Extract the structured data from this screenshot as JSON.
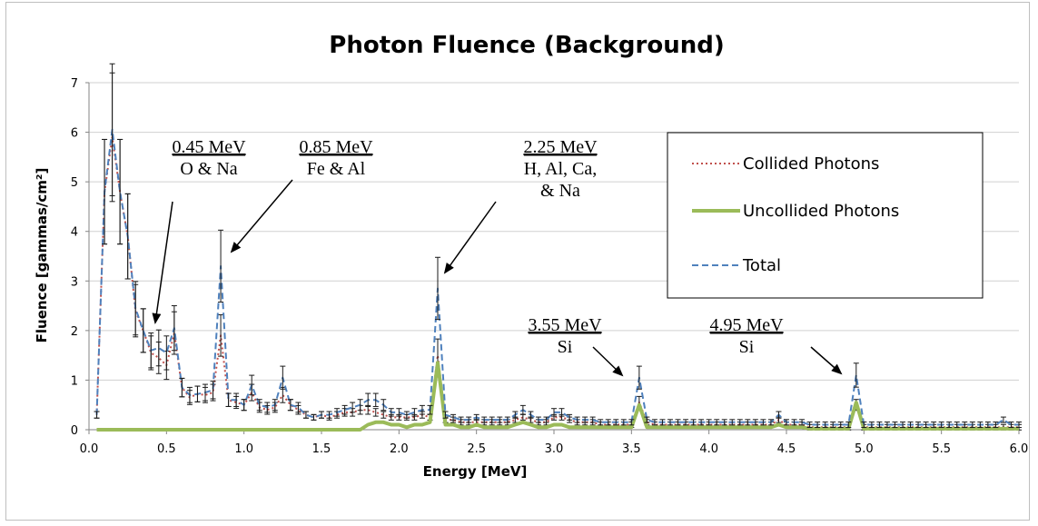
{
  "chart_data": {
    "type": "line",
    "title": "Photon Fluence (Background)",
    "xlabel": "Energy [MeV]",
    "ylabel": "Fluence [gammas/cm²]",
    "xlim": [
      0,
      6.0
    ],
    "ylim": [
      0,
      7
    ],
    "xticks": [
      "0.0",
      "0.5",
      "1.0",
      "1.5",
      "2.0",
      "2.5",
      "3.0",
      "3.5",
      "4.0",
      "4.5",
      "5.0",
      "5.5",
      "6.0"
    ],
    "yticks": [
      "0",
      "1",
      "2",
      "3",
      "4",
      "5",
      "6",
      "7"
    ],
    "grid": "horizontal",
    "legend_position": "top-right",
    "x": [
      0.05,
      0.1,
      0.15,
      0.2,
      0.25,
      0.3,
      0.35,
      0.4,
      0.45,
      0.5,
      0.55,
      0.6,
      0.65,
      0.7,
      0.75,
      0.8,
      0.85,
      0.9,
      0.95,
      1.0,
      1.05,
      1.1,
      1.15,
      1.2,
      1.25,
      1.3,
      1.35,
      1.4,
      1.45,
      1.5,
      1.55,
      1.6,
      1.65,
      1.7,
      1.75,
      1.8,
      1.85,
      1.9,
      1.95,
      2.0,
      2.05,
      2.1,
      2.15,
      2.2,
      2.25,
      2.3,
      2.35,
      2.4,
      2.45,
      2.5,
      2.55,
      2.6,
      2.65,
      2.7,
      2.75,
      2.8,
      2.85,
      2.9,
      2.95,
      3.0,
      3.05,
      3.1,
      3.15,
      3.2,
      3.25,
      3.3,
      3.35,
      3.4,
      3.45,
      3.5,
      3.55,
      3.6,
      3.65,
      3.7,
      3.75,
      3.8,
      3.85,
      3.9,
      3.95,
      4.0,
      4.05,
      4.1,
      4.15,
      4.2,
      4.25,
      4.3,
      4.35,
      4.4,
      4.45,
      4.5,
      4.55,
      4.6,
      4.65,
      4.7,
      4.75,
      4.8,
      4.85,
      4.9,
      4.95,
      5.0,
      5.05,
      5.1,
      5.15,
      5.2,
      5.25,
      5.3,
      5.35,
      5.4,
      5.45,
      5.5,
      5.55,
      5.6,
      5.65,
      5.7,
      5.75,
      5.8,
      5.85,
      5.9,
      5.95,
      6.0
    ],
    "series": [
      {
        "name": "Collided Photons",
        "color": "#c0504d",
        "style": "dotted",
        "values": [
          0.3,
          4.8,
          5.9,
          4.8,
          3.9,
          2.4,
          2.0,
          1.55,
          1.45,
          1.3,
          1.95,
          0.85,
          0.65,
          0.72,
          0.7,
          0.75,
          1.9,
          0.6,
          0.55,
          0.5,
          0.75,
          0.45,
          0.4,
          0.45,
          0.7,
          0.5,
          0.4,
          0.3,
          0.25,
          0.3,
          0.25,
          0.3,
          0.35,
          0.35,
          0.4,
          0.4,
          0.35,
          0.3,
          0.25,
          0.25,
          0.25,
          0.25,
          0.3,
          0.25,
          1.5,
          0.2,
          0.2,
          0.15,
          0.15,
          0.15,
          0.15,
          0.15,
          0.15,
          0.15,
          0.2,
          0.25,
          0.2,
          0.15,
          0.15,
          0.25,
          0.25,
          0.2,
          0.15,
          0.15,
          0.15,
          0.1,
          0.1,
          0.1,
          0.1,
          0.1,
          0.55,
          0.15,
          0.1,
          0.1,
          0.1,
          0.1,
          0.1,
          0.1,
          0.1,
          0.1,
          0.1,
          0.1,
          0.1,
          0.1,
          0.1,
          0.1,
          0.1,
          0.1,
          0.2,
          0.1,
          0.1,
          0.1,
          0.05,
          0.05,
          0.05,
          0.05,
          0.05,
          0.05,
          0.5,
          0.05,
          0.05,
          0.05,
          0.05,
          0.05,
          0.05,
          0.05,
          0.05,
          0.05,
          0.05,
          0.05,
          0.05,
          0.05,
          0.05,
          0.05,
          0.05,
          0.05,
          0.05,
          0.05,
          0.05,
          0.05
        ]
      },
      {
        "name": "Uncollided Photons",
        "color": "#9bbb59",
        "style": "solid",
        "values": [
          0,
          0,
          0,
          0,
          0,
          0,
          0,
          0,
          0,
          0,
          0,
          0,
          0,
          0,
          0,
          0,
          0,
          0,
          0,
          0,
          0,
          0,
          0,
          0,
          0,
          0,
          0,
          0,
          0,
          0,
          0,
          0,
          0,
          0,
          0,
          0.1,
          0.15,
          0.15,
          0.1,
          0.1,
          0.05,
          0.1,
          0.1,
          0.15,
          1.35,
          0.1,
          0.1,
          0.05,
          0.05,
          0.1,
          0.05,
          0.05,
          0.05,
          0.05,
          0.1,
          0.15,
          0.1,
          0.05,
          0.05,
          0.1,
          0.1,
          0.05,
          0.05,
          0.05,
          0.05,
          0.05,
          0.05,
          0.05,
          0.05,
          0.05,
          0.5,
          0.05,
          0.05,
          0.05,
          0.05,
          0.05,
          0.05,
          0.05,
          0.05,
          0.05,
          0.05,
          0.05,
          0.05,
          0.05,
          0.05,
          0.05,
          0.05,
          0.05,
          0.1,
          0.05,
          0.05,
          0.05,
          0.02,
          0.02,
          0.02,
          0.02,
          0.02,
          0.02,
          0.55,
          0.02,
          0.02,
          0.02,
          0.02,
          0.02,
          0.02,
          0.02,
          0.02,
          0.02,
          0.02,
          0.02,
          0.02,
          0.02,
          0.02,
          0.02,
          0.02,
          0.02,
          0.02,
          0.02,
          0.02,
          0.02
        ]
      },
      {
        "name": "Total",
        "color": "#4f81bd",
        "style": "dashed",
        "values": [
          0.3,
          4.8,
          6.05,
          4.8,
          3.9,
          2.45,
          2.0,
          1.6,
          1.65,
          1.55,
          2.05,
          0.85,
          0.7,
          0.72,
          0.75,
          0.8,
          3.3,
          0.6,
          0.6,
          0.5,
          0.9,
          0.5,
          0.45,
          0.5,
          1.05,
          0.5,
          0.45,
          0.3,
          0.25,
          0.3,
          0.3,
          0.35,
          0.4,
          0.45,
          0.5,
          0.6,
          0.6,
          0.5,
          0.35,
          0.35,
          0.3,
          0.35,
          0.4,
          0.4,
          2.85,
          0.3,
          0.25,
          0.2,
          0.2,
          0.25,
          0.2,
          0.2,
          0.2,
          0.2,
          0.3,
          0.4,
          0.3,
          0.2,
          0.2,
          0.35,
          0.35,
          0.25,
          0.2,
          0.2,
          0.2,
          0.15,
          0.15,
          0.15,
          0.15,
          0.15,
          1.05,
          0.2,
          0.15,
          0.15,
          0.15,
          0.15,
          0.15,
          0.15,
          0.15,
          0.15,
          0.15,
          0.15,
          0.15,
          0.15,
          0.15,
          0.15,
          0.15,
          0.15,
          0.3,
          0.15,
          0.15,
          0.15,
          0.1,
          0.1,
          0.1,
          0.1,
          0.1,
          0.1,
          1.1,
          0.1,
          0.1,
          0.1,
          0.1,
          0.1,
          0.1,
          0.1,
          0.1,
          0.1,
          0.1,
          0.1,
          0.1,
          0.1,
          0.1,
          0.1,
          0.1,
          0.1,
          0.1,
          0.2,
          0.1,
          0.1
        ]
      }
    ],
    "annotations": [
      {
        "energy": "0.45 MeV",
        "elements": [
          "O & Na"
        ],
        "points_to_x": 0.45
      },
      {
        "energy": "0.85 MeV",
        "elements": [
          "Fe & Al"
        ],
        "points_to_x": 0.85
      },
      {
        "energy": "2.25 MeV",
        "elements": [
          "H, Al, Ca,",
          "& Na"
        ],
        "points_to_x": 2.25
      },
      {
        "energy": "3.55 MeV",
        "elements": [
          "Si"
        ],
        "points_to_x": 3.55
      },
      {
        "energy": "4.95 MeV",
        "elements": [
          "Si"
        ],
        "points_to_x": 4.95
      }
    ]
  }
}
